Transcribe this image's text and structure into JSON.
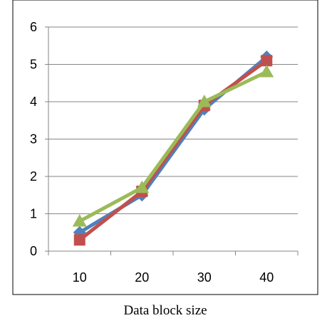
{
  "chart_data": {
    "type": "line",
    "title": "",
    "xlabel": "Data block size",
    "ylabel": "",
    "categories": [
      "10",
      "20",
      "30",
      "40"
    ],
    "ylim": [
      0,
      6
    ],
    "yticks": [
      "0",
      "1",
      "2",
      "3",
      "4",
      "5",
      "6"
    ],
    "grid": true,
    "legend": "none",
    "series": [
      {
        "color": "#4F81BD",
        "marker": "diamond",
        "values": [
          0.5,
          1.5,
          3.8,
          5.2
        ]
      },
      {
        "color": "#C0504D",
        "marker": "square",
        "values": [
          0.3,
          1.6,
          3.9,
          5.1
        ]
      },
      {
        "color": "#9BBB59",
        "marker": "triangle",
        "values": [
          0.8,
          1.7,
          4.0,
          4.8
        ]
      }
    ]
  }
}
